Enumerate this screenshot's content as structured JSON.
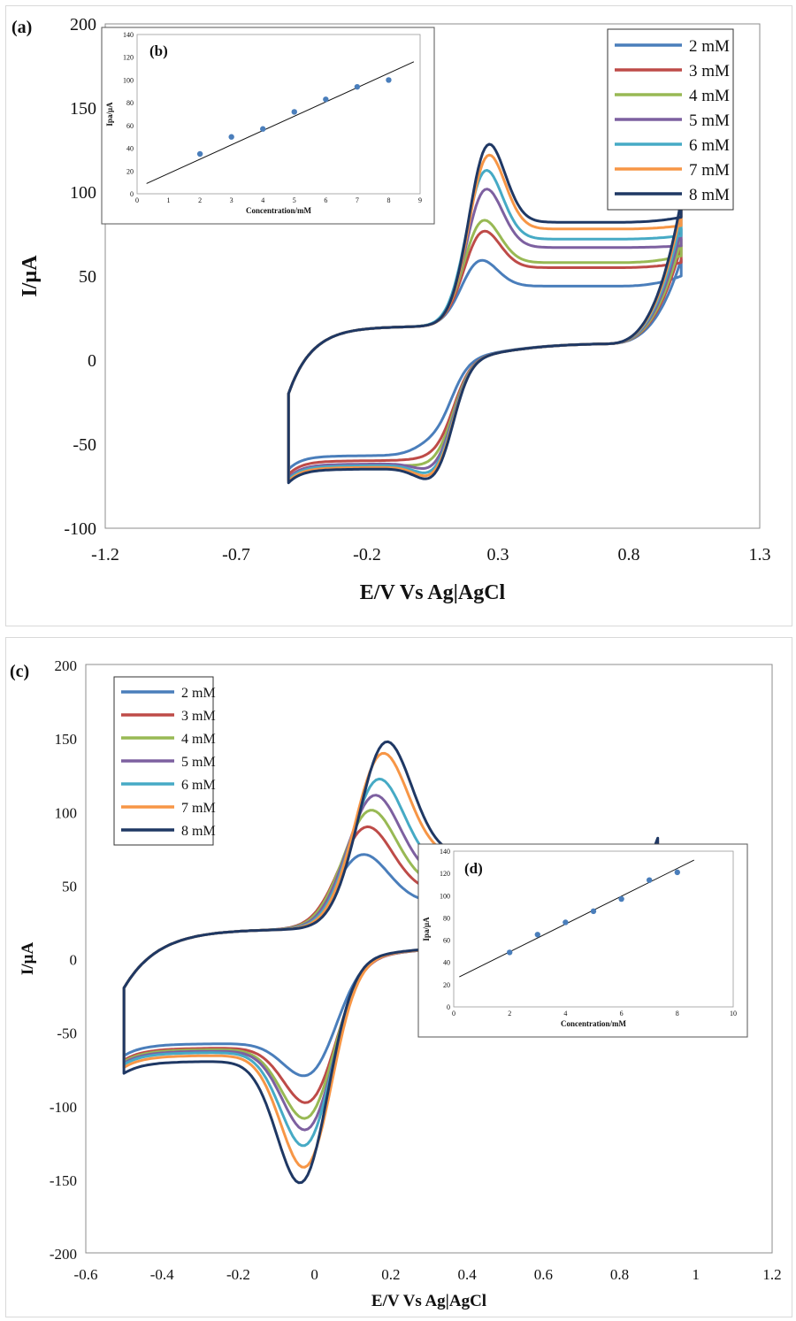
{
  "chart_data": [
    {
      "type": "line",
      "panel": "(a)",
      "xlabel": "E/V Vs Ag|AgCl",
      "ylabel": "I/µA",
      "xlim": [
        -1.2,
        1.3
      ],
      "ylim": [
        -100,
        200
      ],
      "xticks": [
        -1.2,
        -0.7,
        -0.2,
        0.3,
        0.8,
        1.3
      ],
      "yticks": [
        -100,
        -50,
        0,
        50,
        100,
        150,
        200
      ],
      "legend_position": "top-right",
      "scan_range": [
        -0.5,
        1.0
      ],
      "series": [
        {
          "name": "2 mM",
          "color": "#4a7ebb",
          "ipa": 63,
          "epa": 0.22,
          "ipc": -42,
          "epc": 0.05,
          "anodic_tail": 44,
          "vertex_high": 50,
          "vertex_low": -57
        },
        {
          "name": "3 mM",
          "color": "#be4b48",
          "ipa": 82,
          "epa": 0.23,
          "ipc": -50,
          "epc": 0.06,
          "anodic_tail": 55,
          "vertex_high": 58,
          "vertex_low": -60
        },
        {
          "name": "4 mM",
          "color": "#98b954",
          "ipa": 89,
          "epa": 0.23,
          "ipc": -55,
          "epc": 0.06,
          "anodic_tail": 58,
          "vertex_high": 62,
          "vertex_low": -63
        },
        {
          "name": "5 mM",
          "color": "#7d60a0",
          "ipa": 109,
          "epa": 0.24,
          "ipc": -59,
          "epc": 0.06,
          "anodic_tail": 67,
          "vertex_high": 68,
          "vertex_low": -62
        },
        {
          "name": "6 mM",
          "color": "#46aac5",
          "ipa": 121,
          "epa": 0.24,
          "ipc": -62,
          "epc": 0.06,
          "anodic_tail": 72,
          "vertex_high": 74,
          "vertex_low": -63
        },
        {
          "name": "7 mM",
          "color": "#f79646",
          "ipa": 131,
          "epa": 0.25,
          "ipc": -64,
          "epc": 0.06,
          "anodic_tail": 78,
          "vertex_high": 80,
          "vertex_low": -64
        },
        {
          "name": "8 mM",
          "color": "#1f3864",
          "ipa": 138,
          "epa": 0.25,
          "ipc": -66,
          "epc": 0.06,
          "anodic_tail": 82,
          "vertex_high": 85,
          "vertex_low": -65
        }
      ]
    },
    {
      "type": "scatter",
      "panel": "(b)",
      "xlabel": "Concentration/mM",
      "ylabel": "Ipa/µA",
      "xlim": [
        0,
        9
      ],
      "ylim": [
        0,
        140
      ],
      "xticks": [
        0,
        1,
        2,
        3,
        4,
        5,
        6,
        7,
        8,
        9
      ],
      "yticks": [
        0,
        20,
        40,
        60,
        80,
        100,
        120,
        140
      ],
      "x": [
        2,
        3,
        4,
        5,
        6,
        7,
        8
      ],
      "y": [
        35,
        50,
        57,
        72,
        83,
        94,
        100
      ],
      "fit_line": {
        "x": [
          0.3,
          8.8
        ],
        "y": [
          9,
          116
        ]
      }
    },
    {
      "type": "line",
      "panel": "(c)",
      "xlabel": "E/V Vs Ag|AgCl",
      "ylabel": "I/µA",
      "xlim": [
        -0.6,
        1.2
      ],
      "ylim": [
        -200,
        200
      ],
      "xticks": [
        -0.6,
        -0.4,
        -0.2,
        0,
        0.2,
        0.4,
        0.6,
        0.8,
        1,
        1.2
      ],
      "yticks": [
        -200,
        -150,
        -100,
        -50,
        0,
        50,
        100,
        150,
        200
      ],
      "legend_position": "top-left",
      "scan_range": [
        -0.5,
        0.9
      ],
      "series": [
        {
          "name": "2 mM",
          "color": "#4a7ebb",
          "ipa": 74,
          "epa": 0.12,
          "ipc": -76,
          "epc": -0.01,
          "anodic_tail": 38,
          "vertex_high": 44,
          "vertex_low": -58
        },
        {
          "name": "3 mM",
          "color": "#be4b48",
          "ipa": 94,
          "epa": 0.13,
          "ipc": -95,
          "epc": -0.01,
          "anodic_tail": 45,
          "vertex_high": 50,
          "vertex_low": -61
        },
        {
          "name": "4 mM",
          "color": "#98b954",
          "ipa": 106,
          "epa": 0.14,
          "ipc": -106,
          "epc": -0.015,
          "anodic_tail": 49,
          "vertex_high": 55,
          "vertex_low": -62
        },
        {
          "name": "5 mM",
          "color": "#7d60a0",
          "ipa": 117,
          "epa": 0.15,
          "ipc": -114,
          "epc": -0.015,
          "anodic_tail": 54,
          "vertex_high": 58,
          "vertex_low": -63
        },
        {
          "name": "6 mM",
          "color": "#46aac5",
          "ipa": 129,
          "epa": 0.16,
          "ipc": -125,
          "epc": -0.02,
          "anodic_tail": 60,
          "vertex_high": 63,
          "vertex_low": -64
        },
        {
          "name": "7 mM",
          "color": "#f79646",
          "ipa": 148,
          "epa": 0.17,
          "ipc": -140,
          "epc": -0.02,
          "anodic_tail": 69,
          "vertex_high": 70,
          "vertex_low": -66
        },
        {
          "name": "8 mM",
          "color": "#1f3864",
          "ipa": 156,
          "epa": 0.18,
          "ipc": -151,
          "epc": -0.03,
          "anodic_tail": 70,
          "vertex_high": 72,
          "vertex_low": -70
        }
      ]
    },
    {
      "type": "scatter",
      "panel": "(d)",
      "xlabel": "Concentration/mM",
      "ylabel": "Ipa/µA",
      "xlim": [
        0,
        10
      ],
      "ylim": [
        0,
        140
      ],
      "xticks": [
        0,
        2,
        4,
        6,
        8,
        10
      ],
      "yticks": [
        0,
        20,
        40,
        60,
        80,
        100,
        120,
        140
      ],
      "x": [
        2,
        3,
        4,
        5,
        6,
        7,
        8
      ],
      "y": [
        49,
        65,
        76,
        86,
        97,
        114,
        121
      ],
      "fit_line": {
        "x": [
          0.2,
          8.6
        ],
        "y": [
          27,
          132
        ]
      }
    }
  ]
}
